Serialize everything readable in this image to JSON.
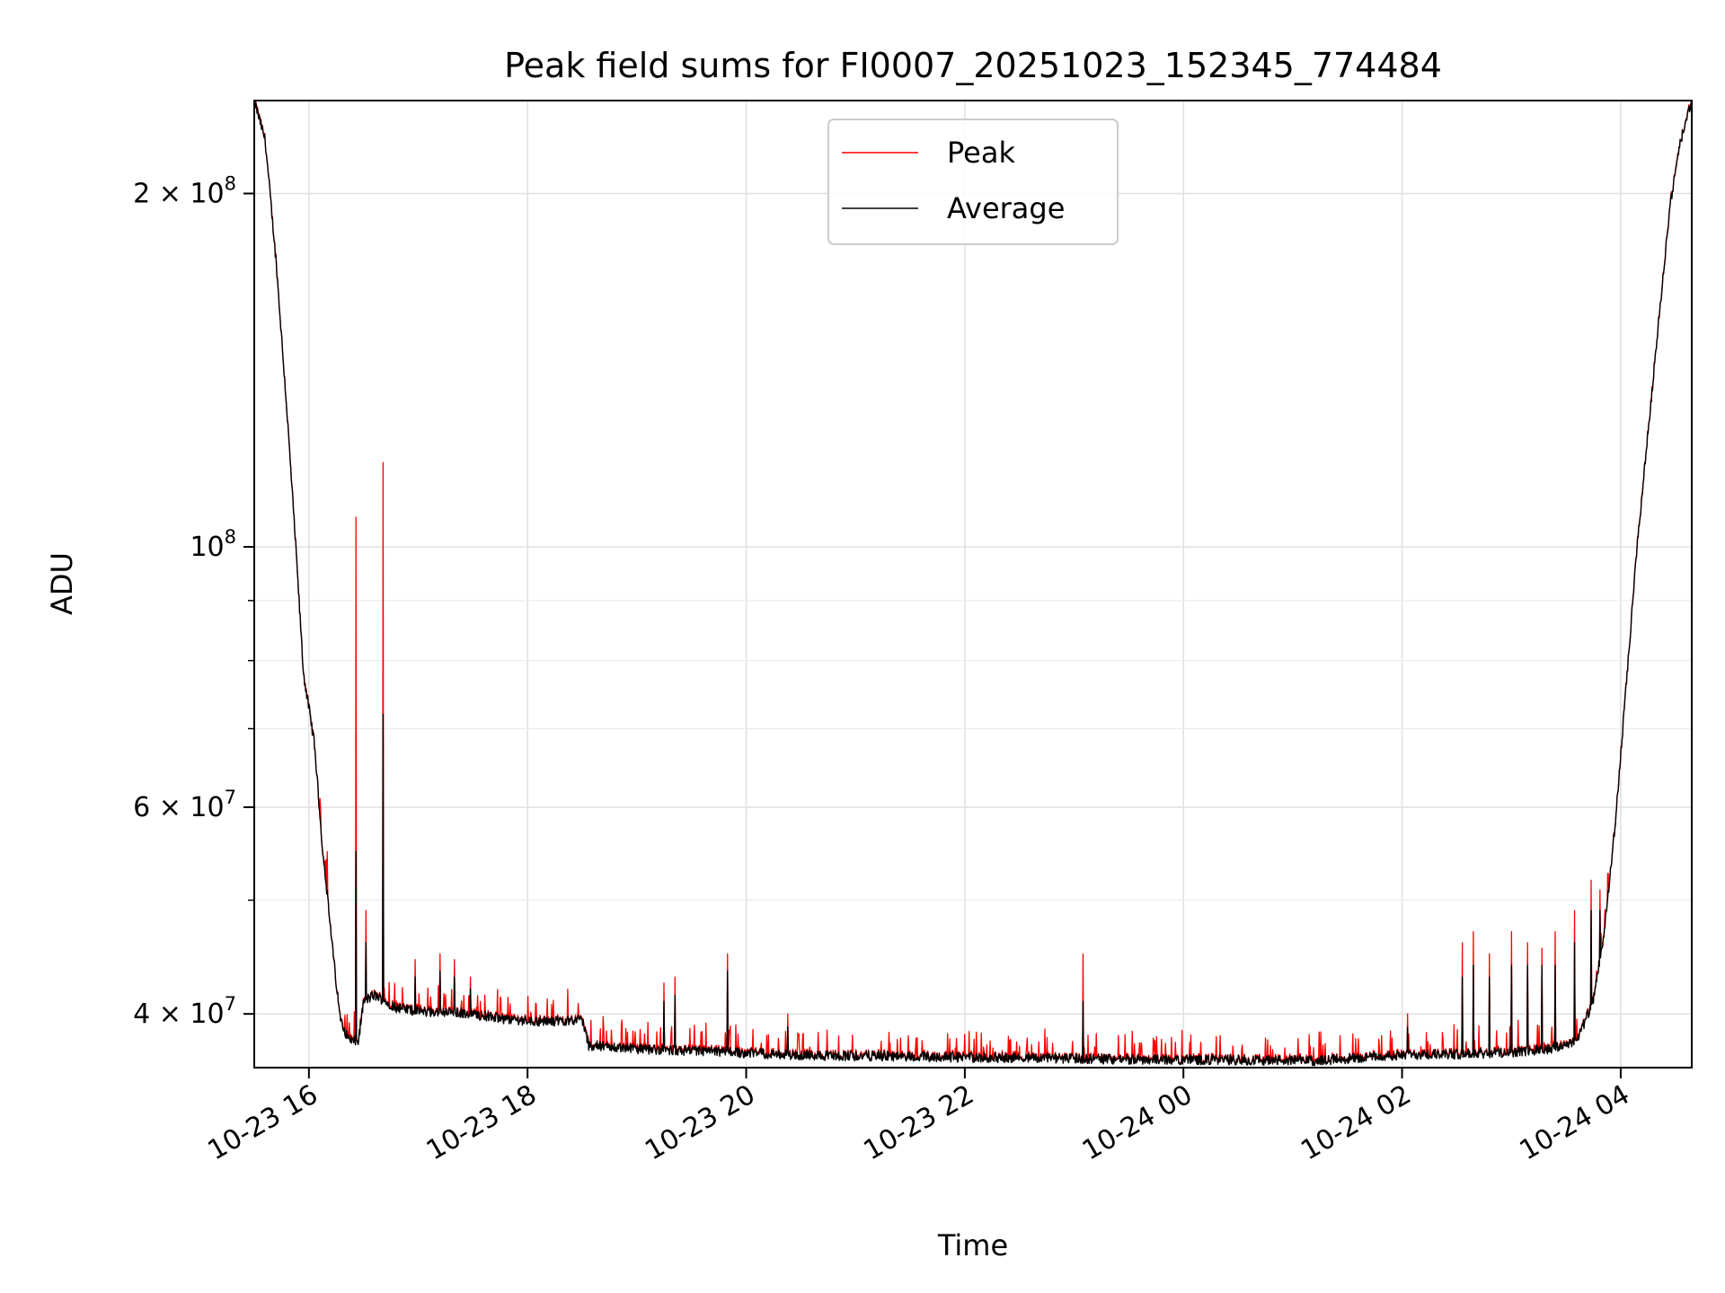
{
  "chart_data": {
    "type": "line",
    "title": "Peak field sums for FI0007_20251023_152345_774484",
    "xlabel": "Time",
    "ylabel": "ADU",
    "y_scale": "log",
    "ylim": [
      36000000,
      240000000
    ],
    "xlim_hours": [
      15.5,
      28.65
    ],
    "grid": true,
    "legend_position": "top-center",
    "x_ticks": [
      {
        "hour": 16,
        "label": "10-23 16"
      },
      {
        "hour": 18,
        "label": "10-23 18"
      },
      {
        "hour": 20,
        "label": "10-23 20"
      },
      {
        "hour": 22,
        "label": "10-23 22"
      },
      {
        "hour": 24,
        "label": "10-24 00"
      },
      {
        "hour": 26,
        "label": "10-24 02"
      },
      {
        "hour": 28,
        "label": "10-24 04"
      }
    ],
    "y_major_ticks": [
      {
        "value": 100000000,
        "mantissa": "",
        "base": "10",
        "exp": "8"
      },
      {
        "value": 200000000,
        "mantissa": "2 × ",
        "base": "10",
        "exp": "8"
      },
      {
        "value": 40000000,
        "mantissa": "4 × ",
        "base": "10",
        "exp": "7"
      },
      {
        "value": 60000000,
        "mantissa": "6 × ",
        "base": "10",
        "exp": "7"
      }
    ],
    "y_minor_values": [
      50000000,
      70000000,
      80000000,
      90000000,
      300000000
    ],
    "series": [
      {
        "name": "Peak",
        "color": "#ff0000"
      },
      {
        "name": "Average",
        "color": "#000000"
      }
    ],
    "baseline_knots": [
      [
        15.5,
        240000000
      ],
      [
        15.6,
        222000000
      ],
      [
        15.7,
        175000000
      ],
      [
        15.8,
        130000000
      ],
      [
        15.88,
        100000000
      ],
      [
        15.95,
        78000000
      ],
      [
        16.05,
        68000000
      ],
      [
        16.12,
        56000000
      ],
      [
        16.2,
        47000000
      ],
      [
        16.28,
        40000000
      ],
      [
        16.35,
        38200000
      ],
      [
        16.45,
        37800000
      ],
      [
        16.5,
        41000000
      ],
      [
        16.6,
        41500000
      ],
      [
        16.8,
        40500000
      ],
      [
        17.0,
        40200000
      ],
      [
        17.4,
        40100000
      ],
      [
        17.8,
        39600000
      ],
      [
        18.2,
        39400000
      ],
      [
        18.5,
        39600000
      ],
      [
        18.56,
        37600000
      ],
      [
        18.9,
        37400000
      ],
      [
        19.4,
        37200000
      ],
      [
        19.9,
        37100000
      ],
      [
        20.5,
        36900000
      ],
      [
        21.5,
        36800000
      ],
      [
        22.5,
        36700000
      ],
      [
        23.5,
        36600000
      ],
      [
        24.5,
        36550000
      ],
      [
        25.2,
        36500000
      ],
      [
        25.6,
        36700000
      ],
      [
        26.0,
        36900000
      ],
      [
        26.6,
        37000000
      ],
      [
        27.0,
        37100000
      ],
      [
        27.4,
        37400000
      ],
      [
        27.6,
        38000000
      ],
      [
        27.75,
        41000000
      ],
      [
        27.85,
        47000000
      ],
      [
        27.95,
        58000000
      ],
      [
        28.05,
        76000000
      ],
      [
        28.15,
        100000000
      ],
      [
        28.3,
        140000000
      ],
      [
        28.45,
        195000000
      ],
      [
        28.55,
        222000000
      ],
      [
        28.65,
        240000000
      ]
    ],
    "spikes": [
      [
        16.43,
        106000000,
        55000000
      ],
      [
        16.68,
        118000000,
        72000000
      ],
      [
        16.52,
        49000000,
        46000000
      ],
      [
        16.17,
        55000000,
        51000000
      ],
      [
        16.97,
        44500000,
        43000000
      ],
      [
        17.2,
        45000000,
        43500000
      ],
      [
        17.33,
        44500000,
        43000000
      ],
      [
        17.48,
        43000000,
        42000000
      ],
      [
        19.25,
        42500000,
        41000000
      ],
      [
        19.35,
        43000000,
        41500000
      ],
      [
        19.83,
        45000000,
        43500000
      ],
      [
        20.38,
        40000000,
        39000000
      ],
      [
        23.08,
        45000000,
        41000000
      ],
      [
        26.05,
        40000000,
        39000000
      ],
      [
        26.55,
        46000000,
        43000000
      ],
      [
        26.65,
        47000000,
        44000000
      ],
      [
        26.8,
        45000000,
        43000000
      ],
      [
        27.0,
        47000000,
        44000000
      ],
      [
        27.15,
        46000000,
        44000000
      ],
      [
        27.28,
        45500000,
        44000000
      ],
      [
        27.4,
        47000000,
        44000000
      ],
      [
        27.58,
        49000000,
        46000000
      ],
      [
        27.73,
        52000000,
        49000000
      ],
      [
        27.81,
        51000000,
        49000000
      ]
    ],
    "noise_amplitude": 0.02
  }
}
